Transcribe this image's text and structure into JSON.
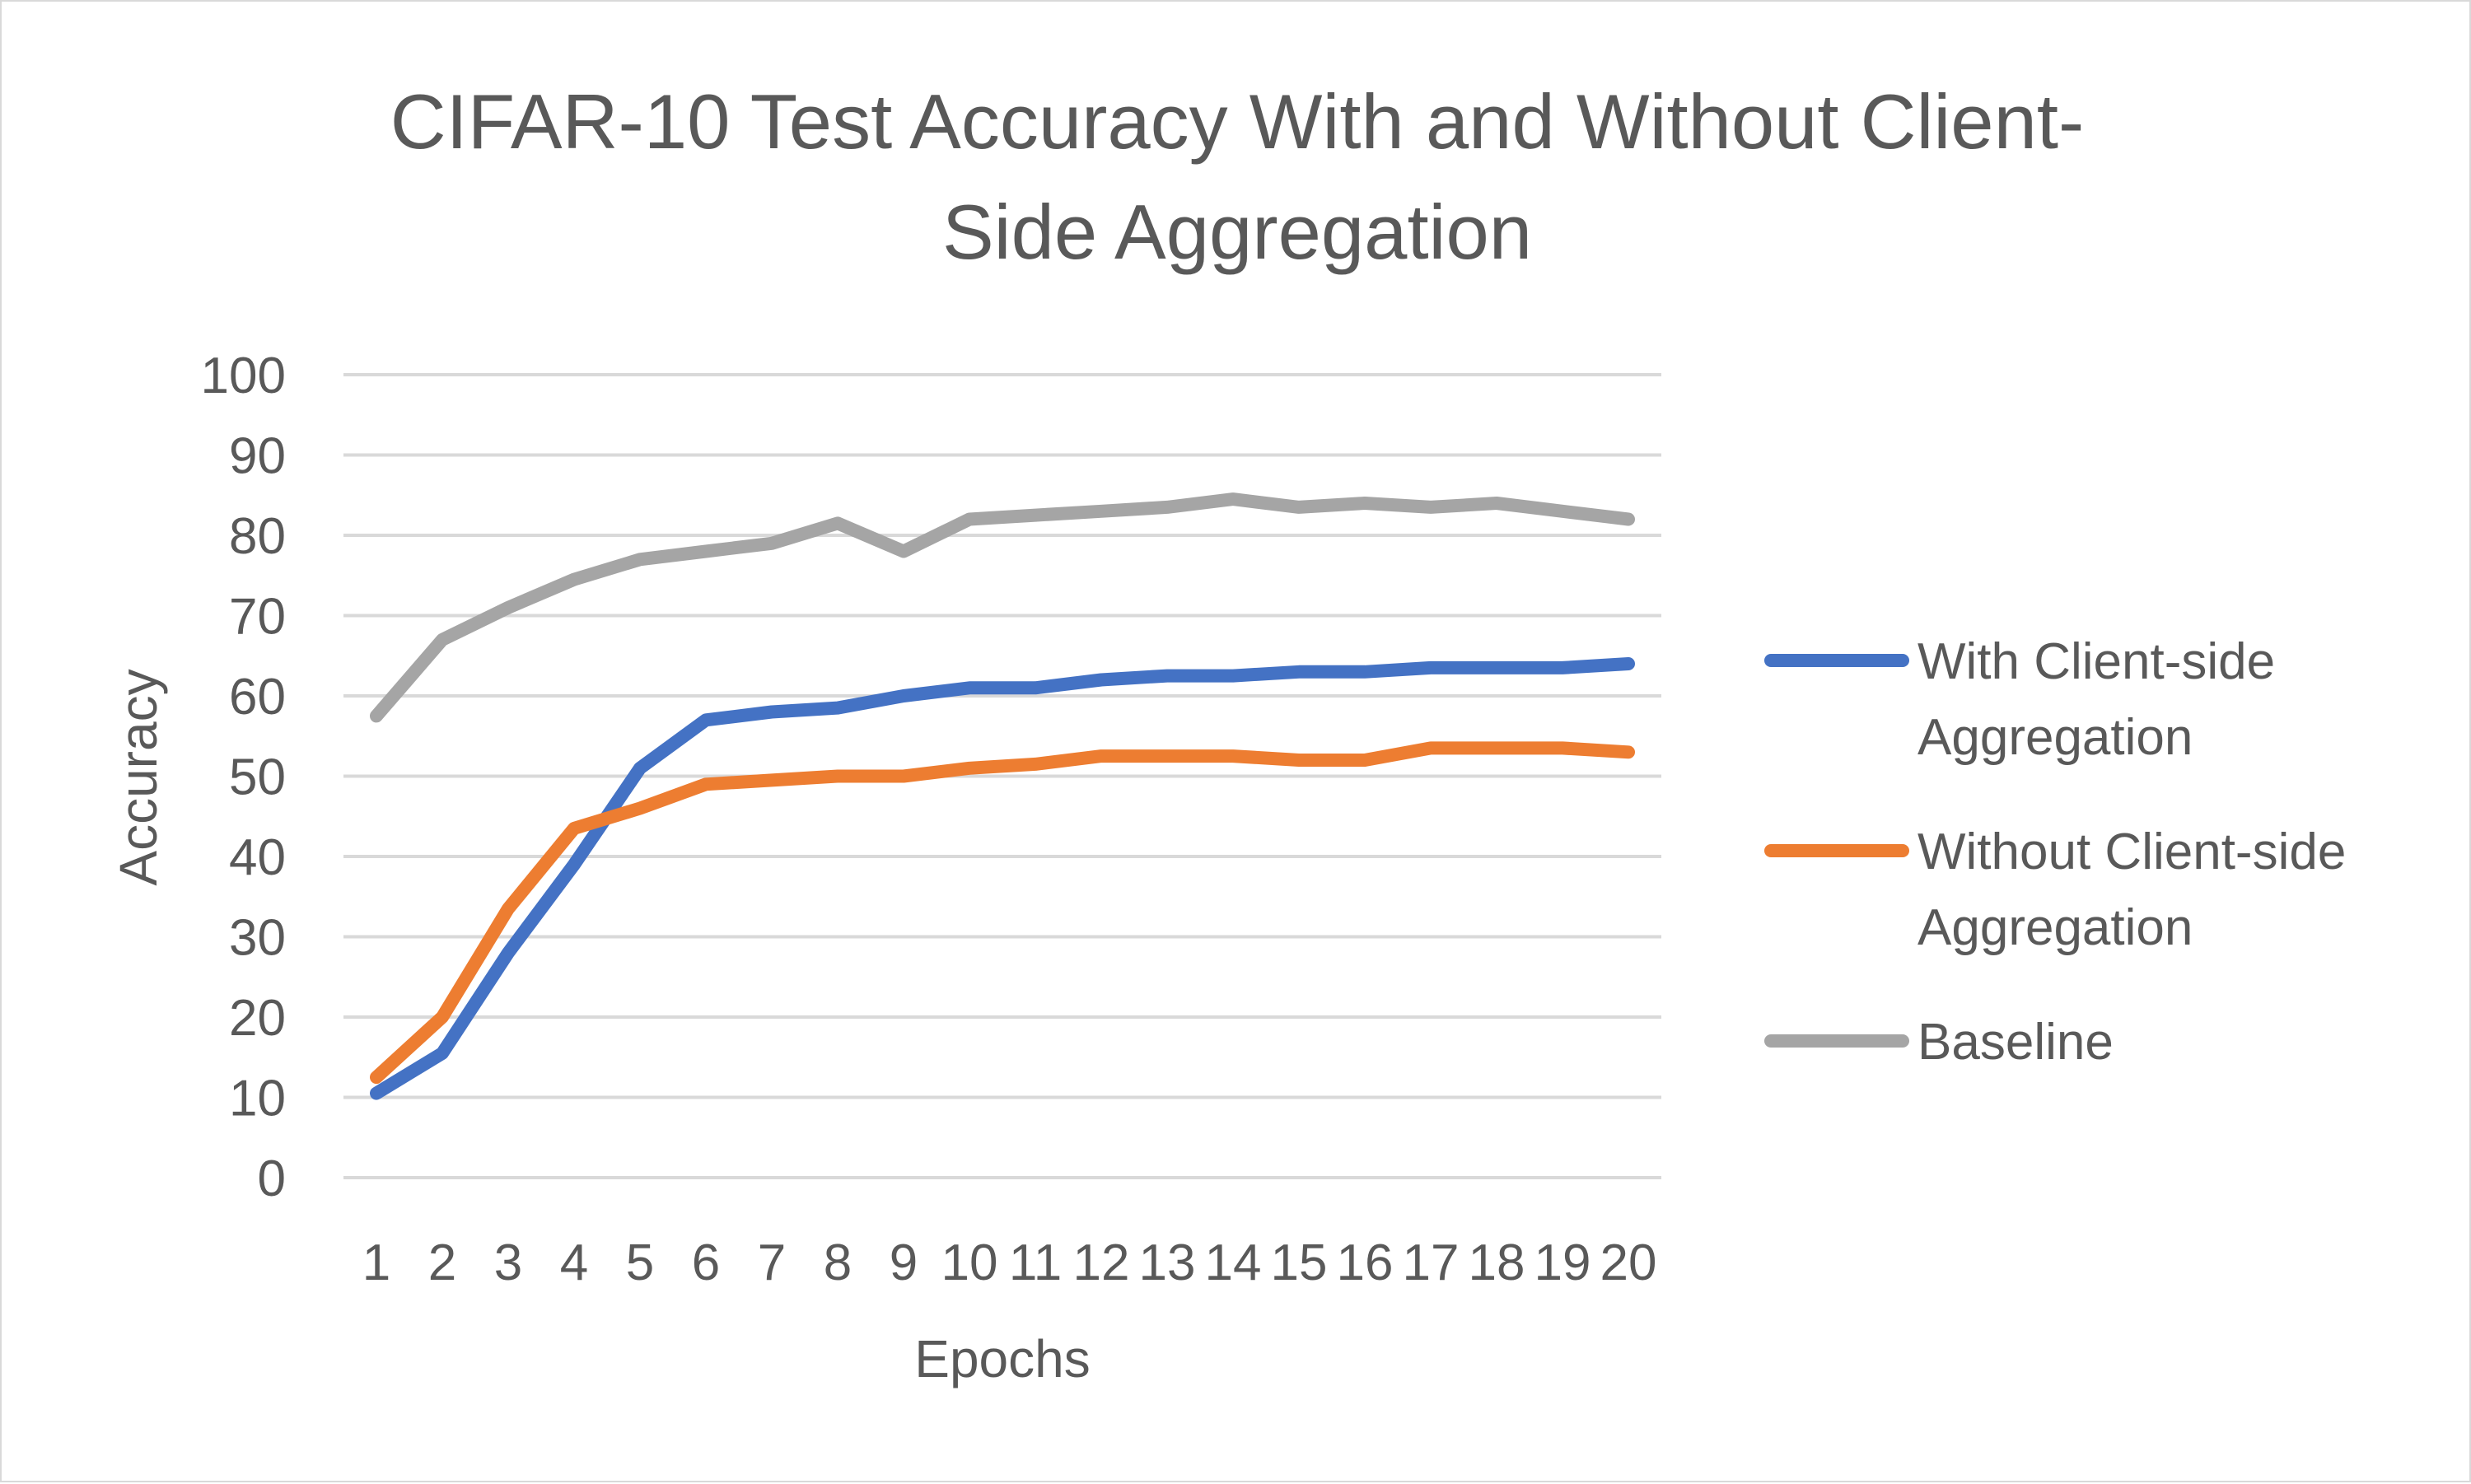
{
  "chart_data": {
    "type": "line",
    "title_lines": [
      "CIFAR-10 Test Accuracy With and Without Client-",
      "Side Aggregation"
    ],
    "xlabel": "Epochs",
    "ylabel": "Accuracy",
    "ylim": [
      0,
      100
    ],
    "yticks": [
      "0",
      "10",
      "20",
      "30",
      "40",
      "50",
      "60",
      "70",
      "80",
      "90",
      "100"
    ],
    "categories": [
      "1",
      "2",
      "3",
      "4",
      "5",
      "6",
      "7",
      "8",
      "9",
      "10",
      "11",
      "12",
      "13",
      "14",
      "15",
      "16",
      "17",
      "18",
      "19",
      "20"
    ],
    "grid": true,
    "legend_position": "right",
    "series": [
      {
        "name": "With Client-side Aggregation",
        "legend_lines": [
          "With Client-side",
          "Aggregation"
        ],
        "color": "#4472C4",
        "values": [
          10.5,
          15.5,
          28,
          39,
          51,
          57,
          58,
          58.5,
          60,
          61,
          61,
          62,
          62.5,
          62.5,
          63,
          63,
          63.5,
          63.5,
          63.5,
          64
        ]
      },
      {
        "name": "Without Client-side Aggregation",
        "legend_lines": [
          "Without Client-side",
          "Aggregation"
        ],
        "color": "#ED7D31",
        "values": [
          12.5,
          20,
          33.5,
          43.5,
          46,
          49,
          49.5,
          50,
          50,
          51,
          51.5,
          52.5,
          52.5,
          52.5,
          52,
          52,
          53.5,
          53.5,
          53.5,
          53
        ]
      },
      {
        "name": "Baseline",
        "legend_lines": [
          "Baseline"
        ],
        "color": "#A5A5A5",
        "values": [
          57.5,
          67,
          71,
          74.5,
          77,
          78,
          79,
          81.5,
          78,
          82,
          82.5,
          83,
          83.5,
          84.5,
          83.5,
          84,
          83.5,
          84,
          83,
          82
        ]
      }
    ]
  }
}
